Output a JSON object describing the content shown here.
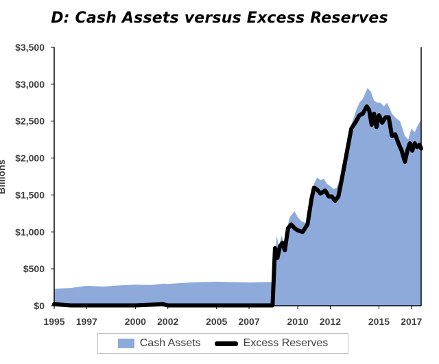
{
  "chart_data": {
    "type": "area",
    "title": "D: Cash Assets versus Excess Reserves",
    "ylabel": "Billions",
    "xlim": [
      1995,
      2017.6
    ],
    "ylim": [
      0,
      3500
    ],
    "x_ticks": [
      1995,
      1997,
      2000,
      2002,
      2005,
      2007,
      2010,
      2012,
      2015,
      2017
    ],
    "y_ticks": [
      0,
      500,
      1000,
      1500,
      2000,
      2500,
      3000,
      3500
    ],
    "y_tick_labels": [
      "$0",
      "$500",
      "$1,000",
      "$1,500",
      "$2,000",
      "$2,500",
      "$3,000",
      "$3,500"
    ],
    "grid": false,
    "legend_position": "bottom",
    "series": [
      {
        "name": "Cash Assets",
        "kind": "area",
        "color": "#8eaadb",
        "x": [
          1995,
          1996,
          1997,
          1998,
          1999,
          2000,
          2001,
          2001.7,
          2002,
          2003,
          2004,
          2005,
          2006,
          2007,
          2008,
          2008.55,
          2008.7,
          2008.85,
          2009,
          2009.15,
          2009.3,
          2009.5,
          2009.8,
          2010,
          2010.2,
          2010.5,
          2010.8,
          2011,
          2011.2,
          2011.4,
          2011.6,
          2011.8,
          2012,
          2012.2,
          2012.4,
          2012.6,
          2012.8,
          2013,
          2013.3,
          2013.6,
          2013.8,
          2014,
          2014.3,
          2014.5,
          2014.7,
          2014.9,
          2015.1,
          2015.3,
          2015.5,
          2015.8,
          2016,
          2016.3,
          2016.6,
          2016.8,
          2017,
          2017.2,
          2017.4,
          2017.6
        ],
        "values": [
          230,
          240,
          270,
          260,
          275,
          285,
          280,
          300,
          295,
          310,
          320,
          325,
          320,
          315,
          320,
          320,
          950,
          800,
          950,
          850,
          1000,
          1200,
          1280,
          1200,
          1150,
          1120,
          1220,
          1650,
          1740,
          1700,
          1720,
          1650,
          1620,
          1580,
          1600,
          1720,
          1900,
          2150,
          2450,
          2650,
          2750,
          2800,
          2950,
          2900,
          2780,
          2750,
          2750,
          2700,
          2750,
          2600,
          2550,
          2500,
          2300,
          2250,
          2400,
          2350,
          2450,
          2520
        ]
      },
      {
        "name": "Excess Reserves",
        "kind": "line",
        "color": "#000000",
        "x": [
          1995,
          1996,
          1998,
          2000,
          2001.7,
          2002,
          2004,
          2006,
          2008,
          2008.45,
          2008.6,
          2008.75,
          2008.9,
          2009.05,
          2009.2,
          2009.4,
          2009.6,
          2009.8,
          2010,
          2010.3,
          2010.6,
          2010.85,
          2011,
          2011.2,
          2011.4,
          2011.7,
          2011.9,
          2012.1,
          2012.3,
          2012.5,
          2012.7,
          2013,
          2013.3,
          2013.6,
          2013.8,
          2014,
          2014.25,
          2014.4,
          2014.55,
          2014.7,
          2014.85,
          2015,
          2015.2,
          2015.4,
          2015.6,
          2015.8,
          2016,
          2016.2,
          2016.4,
          2016.6,
          2016.75,
          2016.9,
          2017.05,
          2017.2,
          2017.35,
          2017.5,
          2017.6
        ],
        "values": [
          20,
          5,
          5,
          5,
          20,
          5,
          5,
          5,
          5,
          5,
          780,
          650,
          800,
          850,
          750,
          1050,
          1100,
          1050,
          1020,
          1000,
          1100,
          1450,
          1600,
          1570,
          1520,
          1560,
          1480,
          1480,
          1420,
          1480,
          1700,
          2050,
          2400,
          2500,
          2580,
          2600,
          2700,
          2650,
          2450,
          2600,
          2420,
          2580,
          2480,
          2550,
          2550,
          2300,
          2320,
          2200,
          2100,
          1950,
          2100,
          2200,
          2100,
          2200,
          2150,
          2180,
          2130
        ]
      }
    ]
  }
}
